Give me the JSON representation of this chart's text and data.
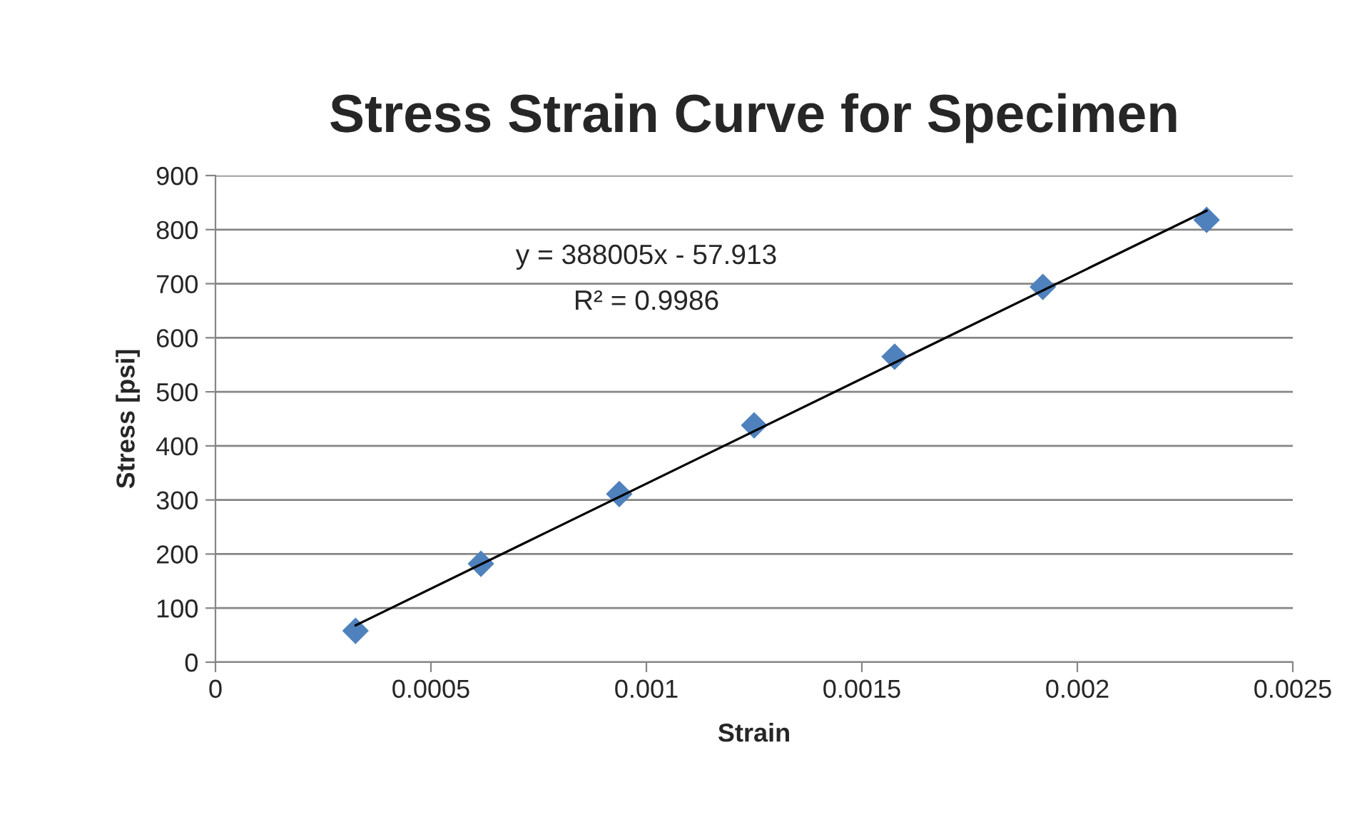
{
  "chart_data": {
    "type": "scatter",
    "title": "Stress Strain Curve for Specimen",
    "xlabel": "Strain",
    "ylabel": "Stress [psi]",
    "x": [
      0.000325,
      0.000616,
      0.000937,
      0.00125,
      0.001576,
      0.00192,
      0.0023
    ],
    "series": [
      {
        "color": "#4f81bd",
        "marker": "diamond",
        "values": [
          58,
          182,
          311,
          438,
          565,
          694,
          818
        ]
      },
      {
        "type": "line",
        "color": "#000000",
        "marker": "none",
        "line_style": "solid",
        "x": [
          0.000325,
          0.0023
        ],
        "values": [
          68,
          835
        ]
      }
    ],
    "annotations": [
      "y = 388005x - 57.913",
      "R² = 0.9986"
    ],
    "xlim": [
      0,
      0.0025
    ],
    "xticks": [
      0,
      0.0005,
      0.001,
      0.0015,
      0.002,
      0.0025
    ],
    "ylim": [
      0,
      900
    ],
    "yticks": [
      0,
      100,
      200,
      300,
      400,
      500,
      600,
      700,
      800,
      900
    ],
    "grid": "y",
    "legend": false
  }
}
